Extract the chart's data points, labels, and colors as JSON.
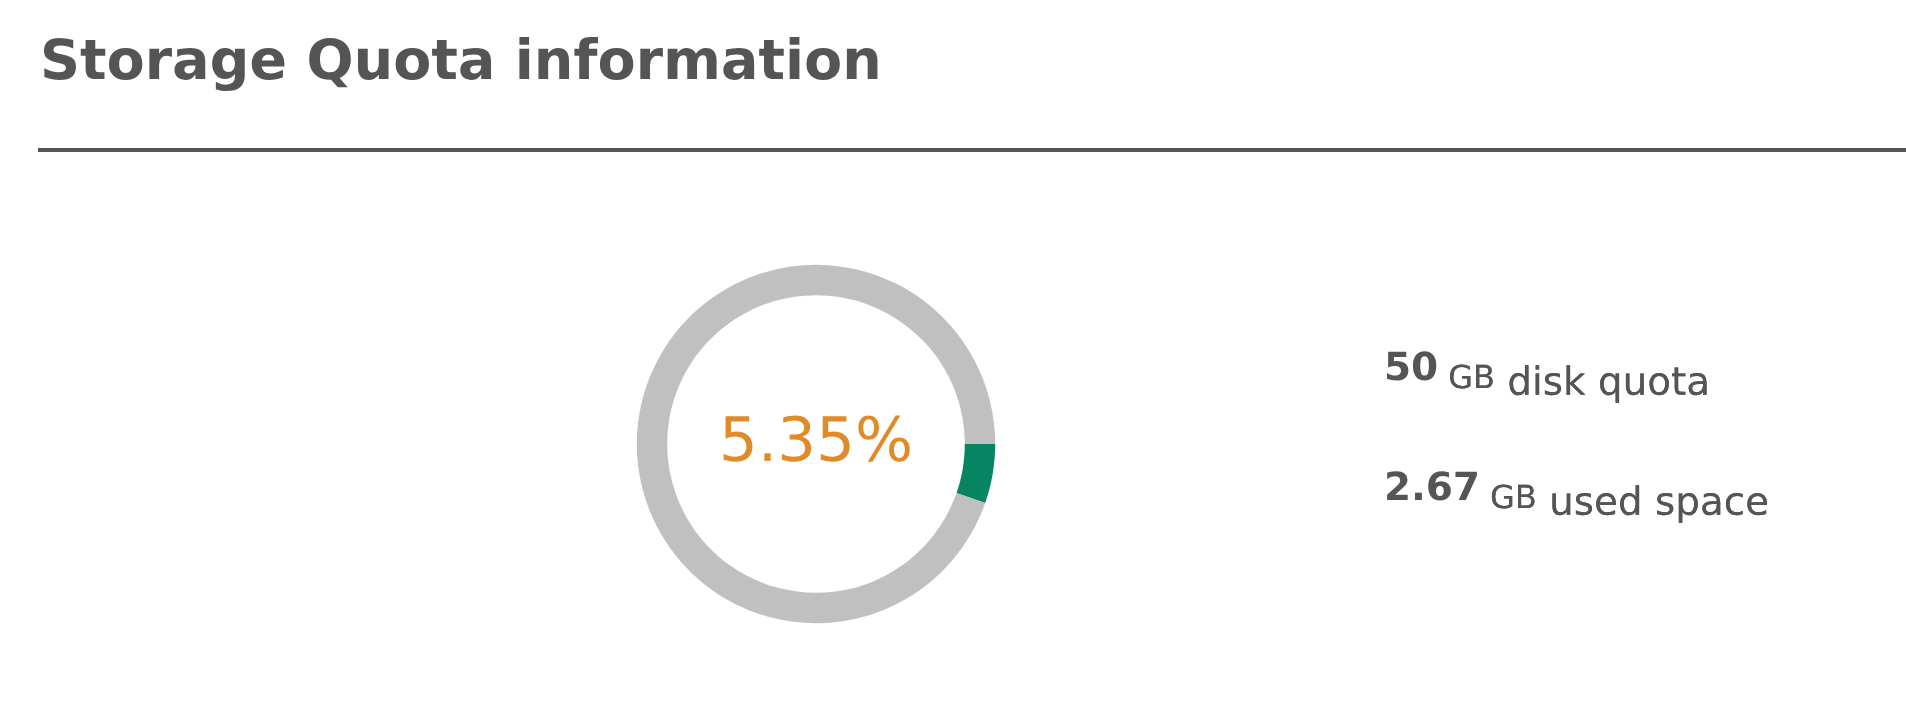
{
  "chart_data": {
    "type": "donut",
    "title": "Storage Quota information",
    "categories": [
      null,
      null
    ],
    "values": [
      5.35,
      94.65
    ],
    "colors": [
      "#078462",
      "#c0c0c0"
    ],
    "annotations": [
      "5.35%",
      "50 GB disk quota",
      "2.67 GB used space"
    ]
  }
}
